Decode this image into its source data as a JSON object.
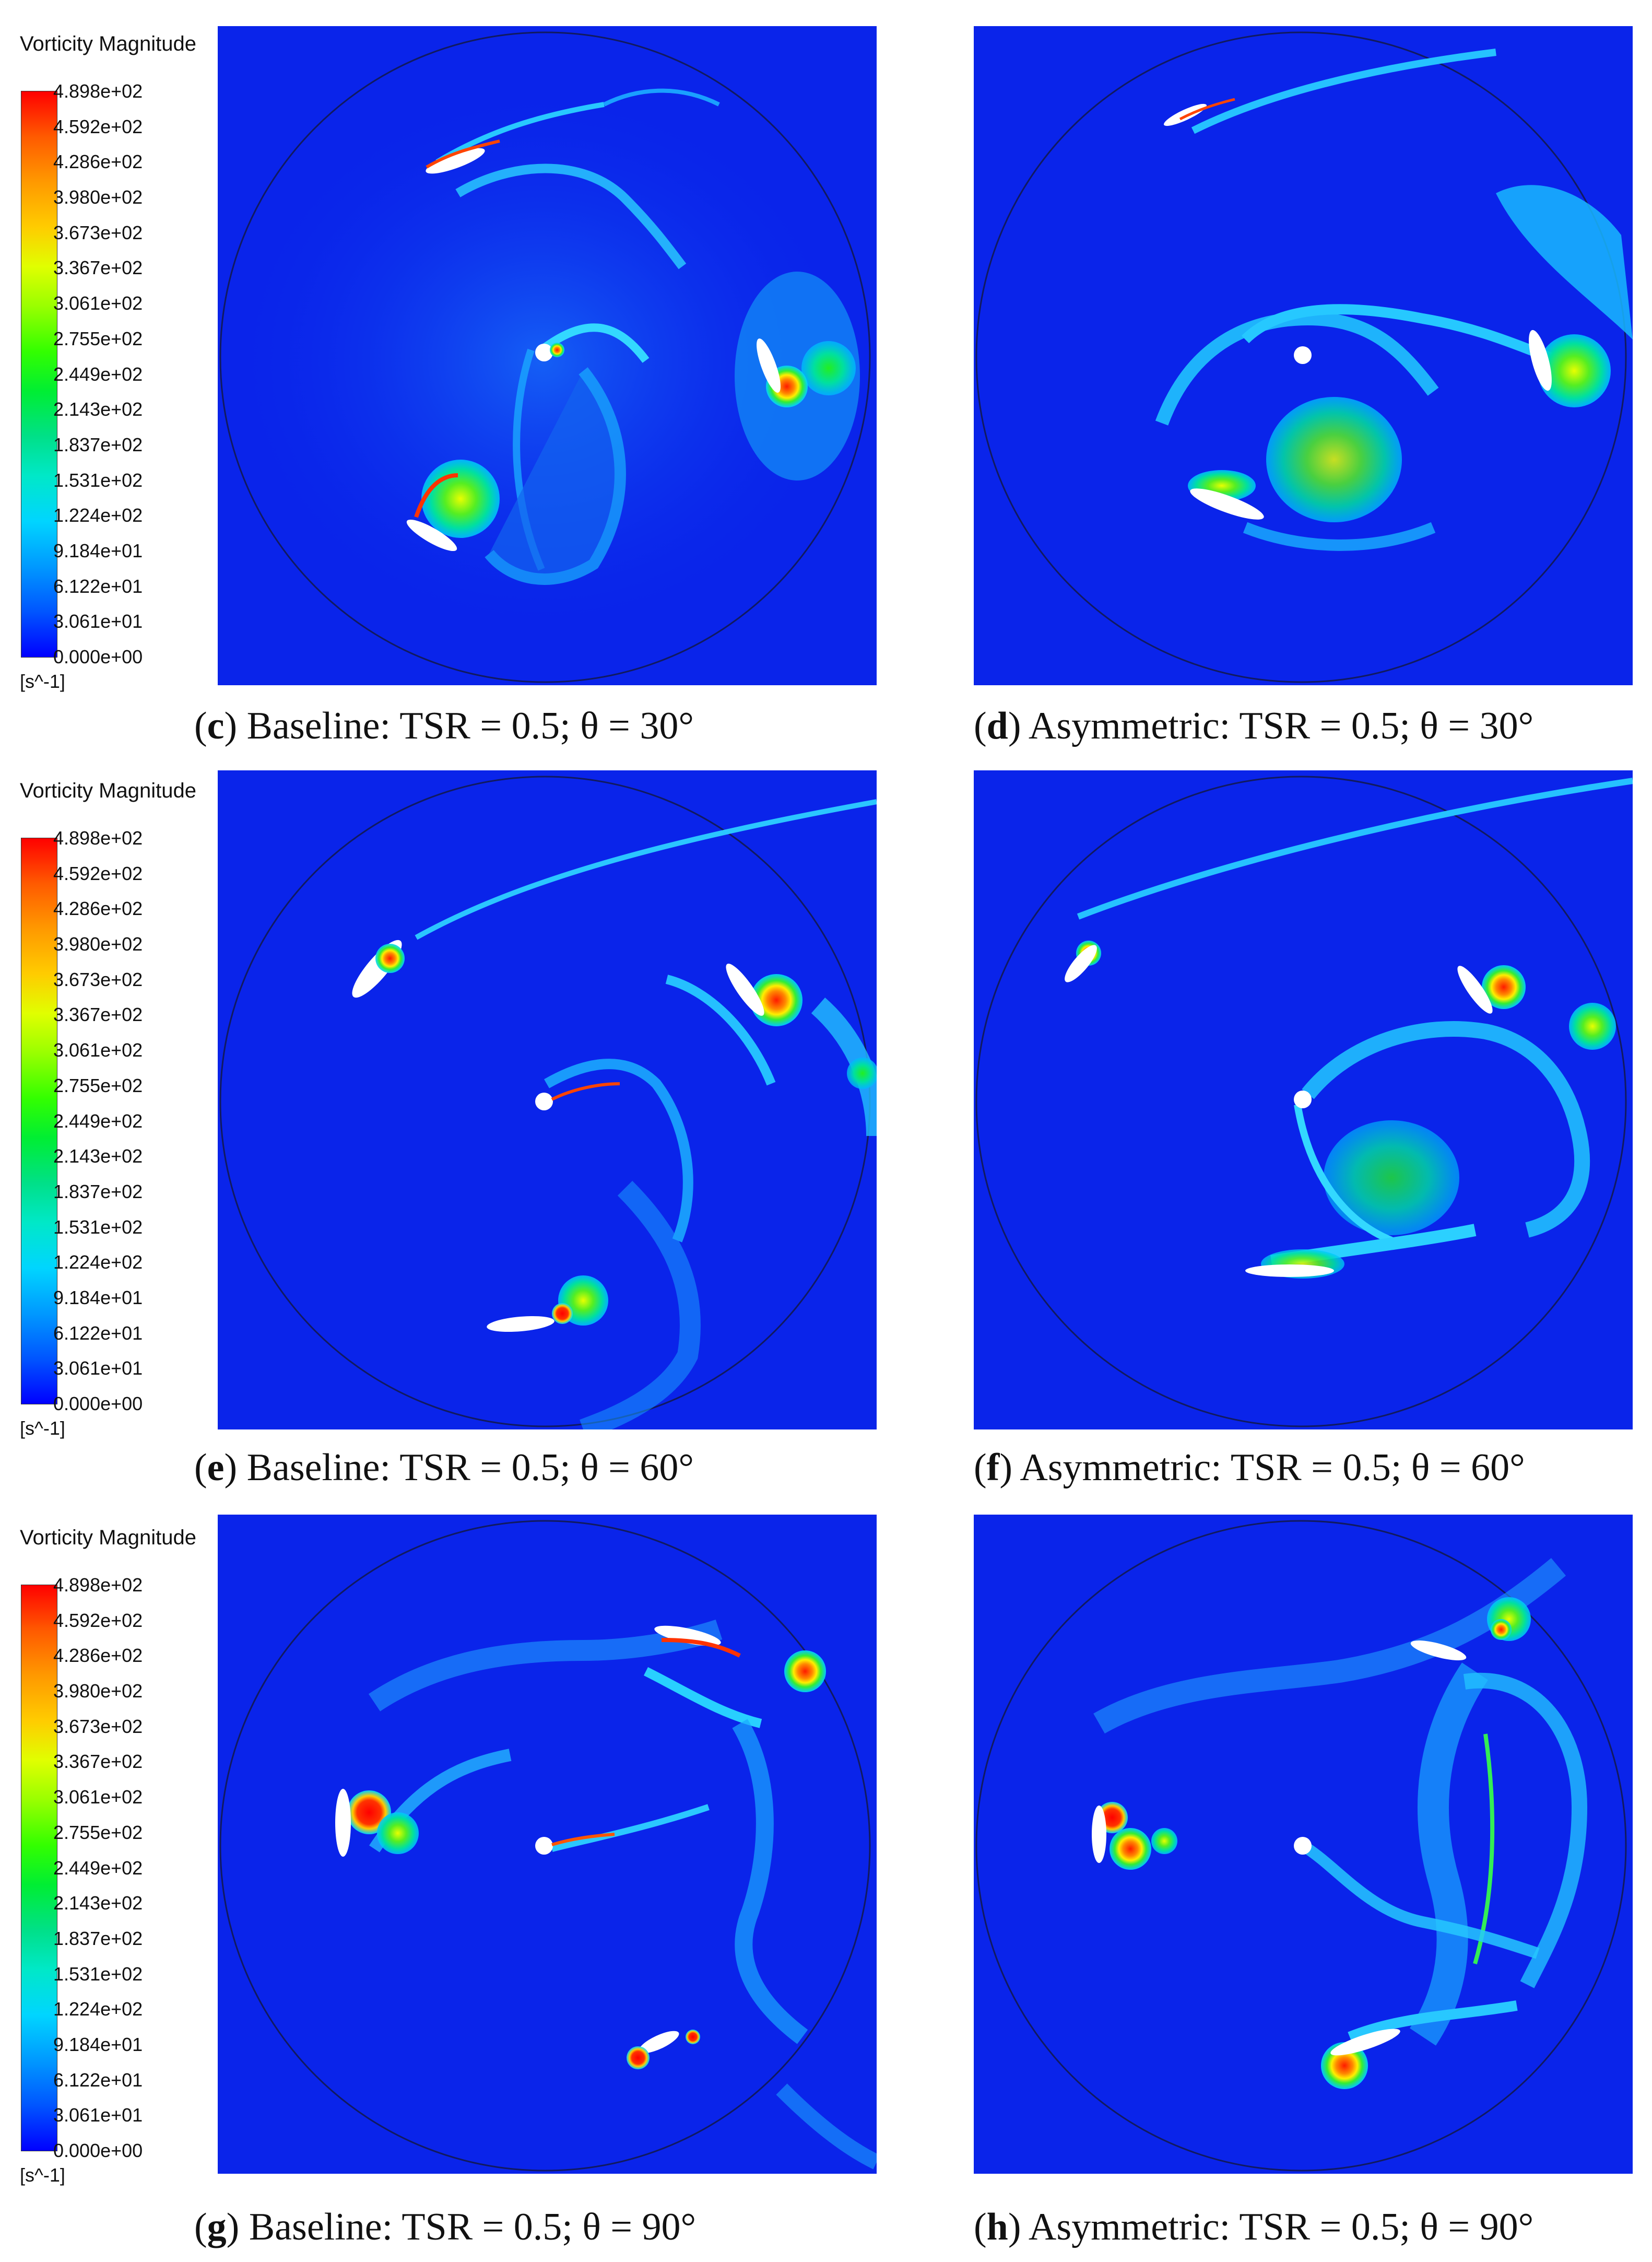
{
  "legend": {
    "title": "Vorticity Magnitude",
    "ticks": [
      "4.898e+02",
      "4.592e+02",
      "4.286e+02",
      "3.980e+02",
      "3.673e+02",
      "3.367e+02",
      "3.061e+02",
      "2.755e+02",
      "2.449e+02",
      "2.143e+02",
      "1.837e+02",
      "1.531e+02",
      "1.224e+02",
      "9.184e+01",
      "6.122e+01",
      "3.061e+01",
      "0.000e+00"
    ],
    "unit": "[s^-1]"
  },
  "captions": {
    "c": {
      "letter": "c",
      "text": "Baseline: TSR = 0.5; θ = 30°"
    },
    "d": {
      "letter": "d",
      "text": "Asymmetric: TSR = 0.5; θ = 30°"
    },
    "e": {
      "letter": "e",
      "text": "Baseline: TSR = 0.5; θ = 60°"
    },
    "f": {
      "letter": "f",
      "text": "Asymmetric: TSR = 0.5; θ = 60°"
    },
    "g": {
      "letter": "g",
      "text": "Baseline: TSR = 0.5; θ = 90°"
    },
    "h": {
      "letter": "h",
      "text": "Asymmetric: TSR = 0.5; θ = 90°"
    }
  },
  "colors": {
    "background_flow": "#0a24ea",
    "low": "#0000ff",
    "high": "#ff0000"
  }
}
